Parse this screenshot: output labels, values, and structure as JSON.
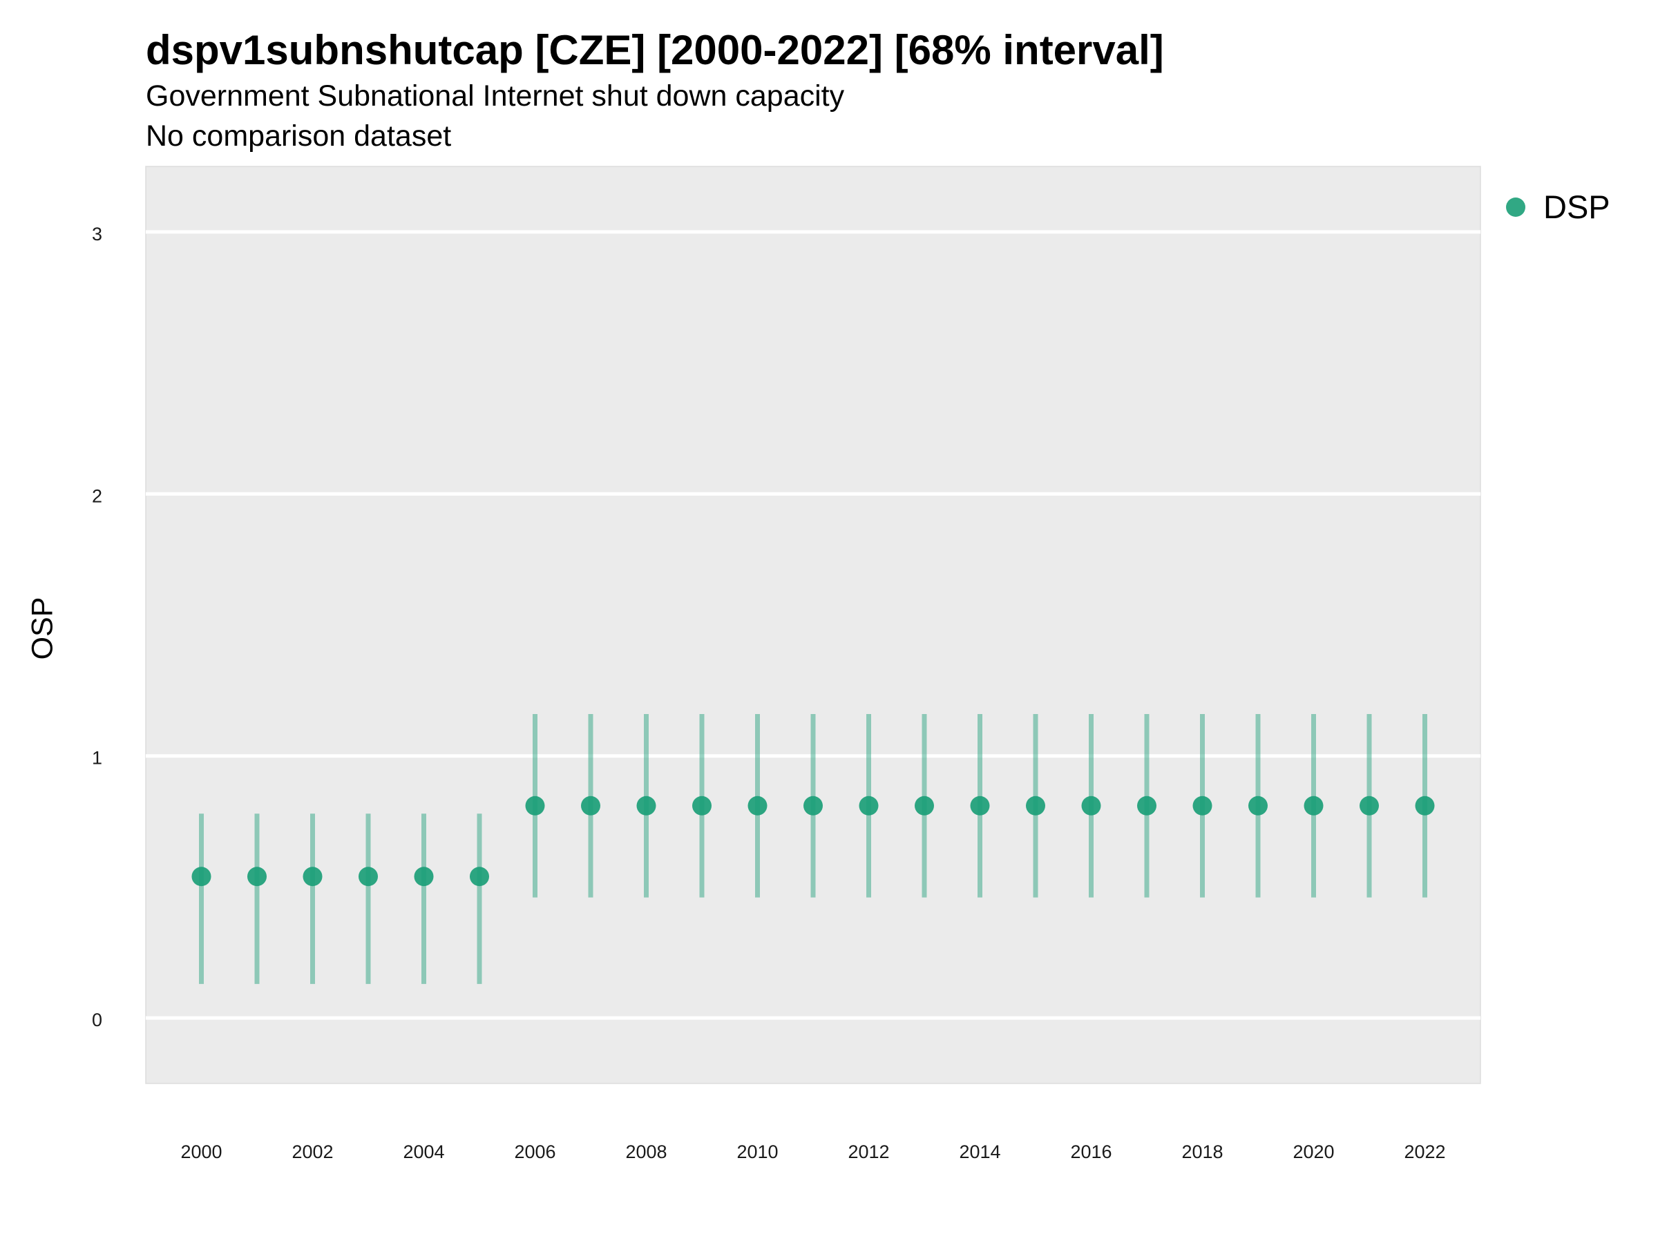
{
  "chart_data": {
    "type": "scatter",
    "title": "dspv1subnshutcap [CZE] [2000-2022] [68% interval]",
    "subtitle": "Government Subnational Internet shut down capacity",
    "subtitle2": "No comparison dataset",
    "xlabel": "",
    "ylabel": "OSP",
    "xlim": [
      1999,
      2023
    ],
    "ylim": [
      -0.25,
      3.25
    ],
    "x_ticks": [
      2000,
      2002,
      2004,
      2006,
      2008,
      2010,
      2012,
      2014,
      2016,
      2018,
      2020,
      2022
    ],
    "y_ticks": [
      0,
      1,
      2,
      3
    ],
    "grid": true,
    "legend_position": "top-right",
    "color": "#1b9e77",
    "series": [
      {
        "name": "DSP",
        "x": [
          2000,
          2001,
          2002,
          2003,
          2004,
          2005,
          2006,
          2007,
          2008,
          2009,
          2010,
          2011,
          2012,
          2013,
          2014,
          2015,
          2016,
          2017,
          2018,
          2019,
          2020,
          2021,
          2022
        ],
        "y": [
          0.54,
          0.54,
          0.54,
          0.54,
          0.54,
          0.54,
          0.81,
          0.81,
          0.81,
          0.81,
          0.81,
          0.81,
          0.81,
          0.81,
          0.81,
          0.81,
          0.81,
          0.81,
          0.81,
          0.81,
          0.81,
          0.81,
          0.81
        ],
        "lower": [
          0.13,
          0.13,
          0.13,
          0.13,
          0.13,
          0.13,
          0.46,
          0.46,
          0.46,
          0.46,
          0.46,
          0.46,
          0.46,
          0.46,
          0.46,
          0.46,
          0.46,
          0.46,
          0.46,
          0.46,
          0.46,
          0.46,
          0.46
        ],
        "upper": [
          0.78,
          0.78,
          0.78,
          0.78,
          0.78,
          0.78,
          1.16,
          1.16,
          1.16,
          1.16,
          1.16,
          1.16,
          1.16,
          1.16,
          1.16,
          1.16,
          1.16,
          1.16,
          1.16,
          1.16,
          1.16,
          1.16,
          1.16
        ]
      }
    ]
  }
}
